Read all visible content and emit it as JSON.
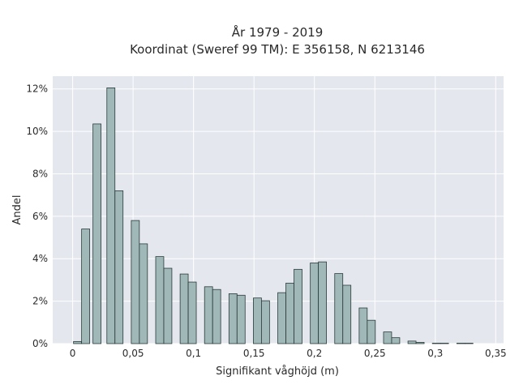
{
  "chart_data": {
    "type": "bar",
    "title_line1": "År 1979 - 2019",
    "title_line2": "Koordinat (Sweref 99 TM): E 356158, N 6213146",
    "xlabel": "Signifikant våghöjd (m)",
    "ylabel": "Andel",
    "xlim": [
      -0.0165,
      0.3565
    ],
    "ylim": [
      0,
      12.6
    ],
    "bin_width": 0.00667,
    "xticks": [
      {
        "value": 0,
        "label": "0"
      },
      {
        "value": 0.05,
        "label": "0,05"
      },
      {
        "value": 0.1,
        "label": "0,1"
      },
      {
        "value": 0.15,
        "label": "0,15"
      },
      {
        "value": 0.2,
        "label": "0,2"
      },
      {
        "value": 0.25,
        "label": "0,25"
      },
      {
        "value": 0.3,
        "label": "0,3"
      },
      {
        "value": 0.35,
        "label": "0,35"
      }
    ],
    "yticks": [
      {
        "value": 0,
        "label": "0%"
      },
      {
        "value": 2,
        "label": "2%"
      },
      {
        "value": 4,
        "label": "4%"
      },
      {
        "value": 6,
        "label": "6%"
      },
      {
        "value": 8,
        "label": "8%"
      },
      {
        "value": 10,
        "label": "10%"
      },
      {
        "value": 12,
        "label": "12%"
      }
    ],
    "bars": [
      {
        "x": 0.0007,
        "value": 0.1
      },
      {
        "x": 0.0074,
        "value": 5.4
      },
      {
        "x": 0.0168,
        "value": 10.35
      },
      {
        "x": 0.0283,
        "value": 12.05
      },
      {
        "x": 0.035,
        "value": 7.2
      },
      {
        "x": 0.0485,
        "value": 5.8
      },
      {
        "x": 0.0552,
        "value": 4.7
      },
      {
        "x": 0.0687,
        "value": 4.1
      },
      {
        "x": 0.0754,
        "value": 3.55
      },
      {
        "x": 0.0889,
        "value": 3.28
      },
      {
        "x": 0.0956,
        "value": 2.9
      },
      {
        "x": 0.1091,
        "value": 2.68
      },
      {
        "x": 0.1158,
        "value": 2.55
      },
      {
        "x": 0.1293,
        "value": 2.35
      },
      {
        "x": 0.136,
        "value": 2.28
      },
      {
        "x": 0.1495,
        "value": 2.15
      },
      {
        "x": 0.1562,
        "value": 2.02
      },
      {
        "x": 0.1697,
        "value": 2.4
      },
      {
        "x": 0.1764,
        "value": 2.85
      },
      {
        "x": 0.1831,
        "value": 3.5
      },
      {
        "x": 0.1966,
        "value": 3.8
      },
      {
        "x": 0.2033,
        "value": 3.85
      },
      {
        "x": 0.2168,
        "value": 3.3
      },
      {
        "x": 0.2235,
        "value": 2.75
      },
      {
        "x": 0.237,
        "value": 1.68
      },
      {
        "x": 0.2437,
        "value": 1.1
      },
      {
        "x": 0.2572,
        "value": 0.55
      },
      {
        "x": 0.2639,
        "value": 0.28
      },
      {
        "x": 0.2774,
        "value": 0.12
      },
      {
        "x": 0.2841,
        "value": 0.06
      },
      {
        "x": 0.2976,
        "value": 0.02
      },
      {
        "x": 0.3043,
        "value": 0.02
      },
      {
        "x": 0.3178,
        "value": 0.02
      },
      {
        "x": 0.3245,
        "value": 0.02
      }
    ],
    "grid": true,
    "colors": {
      "plot_bg": "#e5e7ef",
      "grid": "#ffffff",
      "bar_fill": "#a0b8b8",
      "bar_stroke": "#2b3b3b"
    }
  }
}
